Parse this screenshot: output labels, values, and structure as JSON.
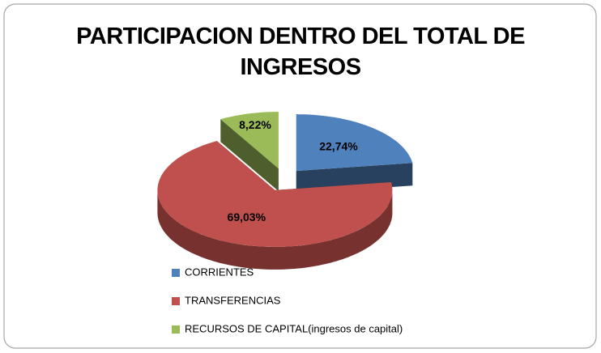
{
  "chart_data": {
    "type": "pie",
    "title": "PARTICIPACION DENTRO DEL TOTAL DE INGRESOS",
    "categories": [
      "CORRIENTES",
      "TRANSFERENCIAS",
      "RECURSOS DE CAPITAL(ingresos de capital)"
    ],
    "values": [
      22.74,
      69.03,
      8.22
    ],
    "value_labels": [
      "22,74%",
      "69,03%",
      "8,22%"
    ],
    "colors": [
      "#4f81bd",
      "#c0504d",
      "#9bbb59"
    ],
    "legend": "bottom-left"
  }
}
